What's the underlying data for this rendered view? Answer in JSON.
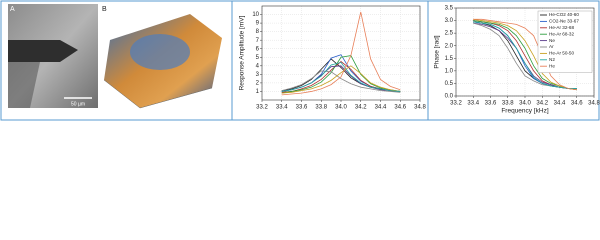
{
  "panels": {
    "label_a": "A",
    "label_b": "B",
    "scale_bar": "50 µm"
  },
  "chart_data": [
    {
      "type": "line",
      "ylabel": "Response Amplitude [mV]",
      "x": [
        33.4,
        33.5,
        33.6,
        33.7,
        33.8,
        33.9,
        34.0,
        34.1,
        34.2,
        34.3,
        34.4,
        34.5,
        34.6
      ],
      "xlim": [
        33.2,
        34.8
      ],
      "xticks": [
        33.2,
        33.4,
        33.6,
        33.8,
        {
          "value": 34,
          "label": "34.0"
        },
        34.2,
        34.4,
        34.6,
        34.8
      ],
      "ylim": [
        0,
        11
      ],
      "yticks": [
        1,
        2,
        3,
        4,
        5,
        6,
        7,
        8,
        9,
        10
      ],
      "grid": true,
      "series": [
        {
          "color": "#222222",
          "values": [
            1.1,
            1.3,
            1.7,
            2.4,
            3.6,
            4.8,
            3.8,
            2.6,
            1.9,
            1.5,
            1.3,
            1.1,
            1.0
          ]
        },
        {
          "color": "#2a5fc9",
          "values": [
            1.0,
            1.2,
            1.5,
            2.0,
            3.0,
            4.9,
            5.3,
            3.4,
            2.2,
            1.6,
            1.3,
            1.1,
            1.0
          ]
        },
        {
          "color": "#b03030",
          "values": [
            0.9,
            1.0,
            1.3,
            1.7,
            2.4,
            3.5,
            4.5,
            3.6,
            2.3,
            1.6,
            1.3,
            1.1,
            1.0
          ]
        },
        {
          "color": "#2e9e3e",
          "values": [
            0.8,
            1.0,
            1.2,
            1.5,
            2.1,
            3.2,
            5.0,
            5.2,
            3.0,
            1.9,
            1.4,
            1.2,
            1.0
          ]
        },
        {
          "color": "#5a3a8a",
          "values": [
            1.0,
            1.2,
            1.5,
            2.0,
            2.9,
            3.9,
            4.0,
            2.8,
            1.9,
            1.5,
            1.2,
            1.1,
            1.0
          ]
        },
        {
          "color": "#8a8a8a",
          "values": [
            1.1,
            1.4,
            1.8,
            2.5,
            3.4,
            3.3,
            2.5,
            1.9,
            1.5,
            1.3,
            1.1,
            1.0,
            0.9
          ]
        },
        {
          "color": "#c8a020",
          "values": [
            0.8,
            0.9,
            1.1,
            1.3,
            1.7,
            2.3,
            3.2,
            4.0,
            3.1,
            2.0,
            1.5,
            1.2,
            1.0
          ]
        },
        {
          "color": "#20a8a0",
          "values": [
            1.0,
            1.2,
            1.5,
            2.0,
            2.8,
            4.1,
            4.4,
            2.9,
            2.0,
            1.5,
            1.3,
            1.1,
            1.0
          ]
        },
        {
          "color": "#e8805a",
          "values": [
            0.6,
            0.7,
            0.8,
            1.0,
            1.3,
            1.8,
            2.7,
            5.2,
            10.3,
            4.8,
            2.4,
            1.6,
            1.2
          ]
        }
      ]
    },
    {
      "type": "line",
      "ylabel": "Phase [rad]",
      "xlabel": "Frequency [kHz]",
      "x": [
        33.4,
        33.5,
        33.6,
        33.7,
        33.8,
        33.9,
        34.0,
        34.1,
        34.2,
        34.3,
        34.4,
        34.5,
        34.6
      ],
      "xlim": [
        33.2,
        34.8
      ],
      "xticks": [
        33.2,
        33.4,
        33.6,
        33.8,
        {
          "value": 34,
          "label": "34.0"
        },
        34.2,
        34.4,
        34.6,
        34.8
      ],
      "ylim": [
        0,
        3.5
      ],
      "yticks": [
        {
          "value": 0,
          "label": "0.0"
        },
        0.5,
        {
          "value": 1,
          "label": "1.0"
        },
        1.5,
        {
          "value": 2,
          "label": "2.0"
        },
        2.5,
        {
          "value": 3,
          "label": "3.0"
        },
        3.5
      ],
      "grid": true,
      "legend": "top-right",
      "series": [
        {
          "name": "He-CO2 40-60",
          "color": "#222222",
          "values": [
            2.95,
            2.9,
            2.8,
            2.6,
            2.2,
            1.6,
            1.0,
            0.7,
            0.5,
            0.4,
            0.35,
            0.3,
            0.3
          ]
        },
        {
          "name": "CO2-Ne 33-67",
          "color": "#2a5fc9",
          "values": [
            2.95,
            2.9,
            2.85,
            2.7,
            2.4,
            1.9,
            1.2,
            0.7,
            0.5,
            0.4,
            0.35,
            0.3,
            0.3
          ]
        },
        {
          "name": "He-Ar 32-68",
          "color": "#b03030",
          "values": [
            3.0,
            2.95,
            2.9,
            2.8,
            2.6,
            2.2,
            1.6,
            1.0,
            0.6,
            0.45,
            0.35,
            0.3,
            0.25
          ]
        },
        {
          "name": "He-Ar 68-32",
          "color": "#2e9e3e",
          "values": [
            3.0,
            2.95,
            2.9,
            2.85,
            2.7,
            2.4,
            1.9,
            1.2,
            0.7,
            0.5,
            0.4,
            0.3,
            0.25
          ]
        },
        {
          "name": "Ne",
          "color": "#5a3a8a",
          "values": [
            2.9,
            2.85,
            2.75,
            2.6,
            2.3,
            1.9,
            1.3,
            0.8,
            0.55,
            0.45,
            0.35,
            0.3,
            0.3
          ]
        },
        {
          "name": "Ar",
          "color": "#8a8a8a",
          "values": [
            2.9,
            2.8,
            2.65,
            2.4,
            1.9,
            1.3,
            0.8,
            0.6,
            0.45,
            0.4,
            0.35,
            0.3,
            0.3
          ]
        },
        {
          "name": "He-Ar 50-50",
          "color": "#c8a020",
          "values": [
            3.05,
            3.0,
            2.95,
            2.9,
            2.8,
            2.6,
            2.2,
            1.6,
            0.9,
            0.55,
            0.4,
            0.3,
            0.25
          ]
        },
        {
          "name": "N2",
          "color": "#20a8a0",
          "values": [
            2.95,
            2.9,
            2.85,
            2.7,
            2.4,
            1.9,
            1.3,
            0.75,
            0.5,
            0.4,
            0.35,
            0.3,
            0.3
          ]
        },
        {
          "name": "He",
          "color": "#e8805a",
          "values": [
            3.05,
            3.05,
            3.0,
            2.95,
            2.9,
            2.85,
            2.7,
            2.4,
            1.6,
            0.8,
            0.45,
            0.3,
            0.25
          ]
        }
      ]
    }
  ]
}
